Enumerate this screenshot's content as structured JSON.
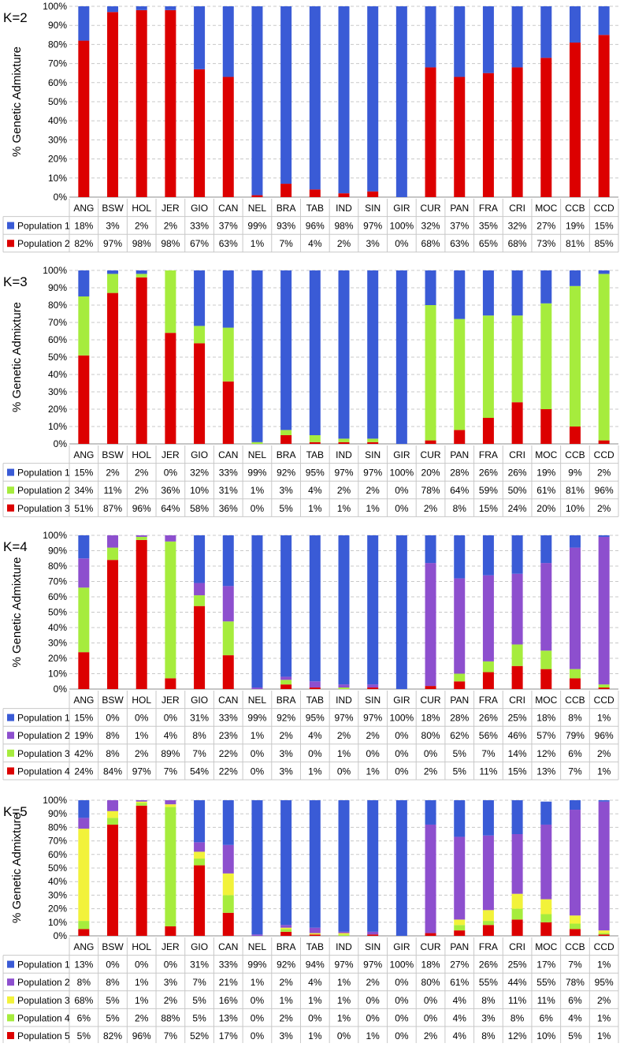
{
  "colors": {
    "Population 1": "#3a5bd6",
    "Population 2": "#8d4fce",
    "Population 3": "#f2f23a",
    "Population 4": "#a6ec3d",
    "Population 5": "#dc0000",
    "grid": "#c8c8c8",
    "axis": "#8c8c8c",
    "text": "#000000"
  },
  "chart_data": [
    {
      "type": "bar",
      "stacked": true,
      "title": "K=2",
      "ylabel": "% Genetic Admixture",
      "ylim": [
        0,
        100
      ],
      "yticks": [
        "0%",
        "10%",
        "20%",
        "30%",
        "40%",
        "50%",
        "60%",
        "70%",
        "80%",
        "90%",
        "100%"
      ],
      "categories": [
        "ANG",
        "BSW",
        "HOL",
        "JER",
        "GIO",
        "CAN",
        "NEL",
        "BRA",
        "TAB",
        "IND",
        "SIN",
        "GIR",
        "CUR",
        "PAN",
        "FRA",
        "CRI",
        "MOC",
        "CCB",
        "CCD"
      ],
      "series": [
        {
          "name": "Population 1",
          "color_key": "Population 1",
          "values": [
            18,
            3,
            2,
            2,
            33,
            37,
            99,
            93,
            96,
            98,
            97,
            100,
            32,
            37,
            35,
            32,
            27,
            19,
            15
          ],
          "labels": [
            "18%",
            "3%",
            "2%",
            "2%",
            "33%",
            "37%",
            "99%",
            "93%",
            "96%",
            "98%",
            "97%",
            "100%",
            "32%",
            "37%",
            "35%",
            "32%",
            "27%",
            "19%",
            "15%"
          ]
        },
        {
          "name": "Population 2",
          "color_key": "Population 5",
          "values": [
            82,
            97,
            98,
            98,
            67,
            63,
            1,
            7,
            4,
            2,
            3,
            0,
            68,
            63,
            65,
            68,
            73,
            81,
            85
          ],
          "labels": [
            "82%",
            "97%",
            "98%",
            "98%",
            "67%",
            "63%",
            "1%",
            "7%",
            "4%",
            "2%",
            "3%",
            "0%",
            "68%",
            "63%",
            "65%",
            "68%",
            "73%",
            "81%",
            "85%"
          ]
        }
      ]
    },
    {
      "type": "bar",
      "stacked": true,
      "title": "K=3",
      "ylabel": "% Genetic Admixture",
      "ylim": [
        0,
        100
      ],
      "yticks": [
        "0%",
        "10%",
        "20%",
        "30%",
        "40%",
        "50%",
        "60%",
        "70%",
        "80%",
        "90%",
        "100%"
      ],
      "categories": [
        "ANG",
        "BSW",
        "HOL",
        "JER",
        "GIO",
        "CAN",
        "NEL",
        "BRA",
        "TAB",
        "IND",
        "SIN",
        "GIR",
        "CUR",
        "PAN",
        "FRA",
        "CRI",
        "MOC",
        "CCB",
        "CCD"
      ],
      "series": [
        {
          "name": "Population 1",
          "color_key": "Population 1",
          "values": [
            15,
            2,
            2,
            0,
            32,
            33,
            99,
            92,
            95,
            97,
            97,
            100,
            20,
            28,
            26,
            26,
            19,
            9,
            2
          ],
          "labels": [
            "15%",
            "2%",
            "2%",
            "0%",
            "32%",
            "33%",
            "99%",
            "92%",
            "95%",
            "97%",
            "97%",
            "100%",
            "20%",
            "28%",
            "26%",
            "26%",
            "19%",
            "9%",
            "2%"
          ]
        },
        {
          "name": "Population 2",
          "color_key": "Population 4",
          "values": [
            34,
            11,
            2,
            36,
            10,
            31,
            1,
            3,
            4,
            2,
            2,
            0,
            78,
            64,
            59,
            50,
            61,
            81,
            96
          ],
          "labels": [
            "34%",
            "11%",
            "2%",
            "36%",
            "10%",
            "31%",
            "1%",
            "3%",
            "4%",
            "2%",
            "2%",
            "0%",
            "78%",
            "64%",
            "59%",
            "50%",
            "61%",
            "81%",
            "96%"
          ]
        },
        {
          "name": "Population 3",
          "color_key": "Population 5",
          "values": [
            51,
            87,
            96,
            64,
            58,
            36,
            0,
            5,
            1,
            1,
            1,
            0,
            2,
            8,
            15,
            24,
            20,
            10,
            2
          ],
          "labels": [
            "51%",
            "87%",
            "96%",
            "64%",
            "58%",
            "36%",
            "0%",
            "5%",
            "1%",
            "1%",
            "1%",
            "0%",
            "2%",
            "8%",
            "15%",
            "24%",
            "20%",
            "10%",
            "2%"
          ]
        }
      ]
    },
    {
      "type": "bar",
      "stacked": true,
      "title": "K=4",
      "ylabel": "% Genetic Admixture",
      "ylim": [
        0,
        100
      ],
      "yticks": [
        "0%",
        "10%",
        "20%",
        "30%",
        "40%",
        "50%",
        "60%",
        "70%",
        "80%",
        "90%",
        "100%"
      ],
      "categories": [
        "ANG",
        "BSW",
        "HOL",
        "JER",
        "GIO",
        "CAN",
        "NEL",
        "BRA",
        "TAB",
        "IND",
        "SIN",
        "GIR",
        "CUR",
        "PAN",
        "FRA",
        "CRI",
        "MOC",
        "CCB",
        "CCD"
      ],
      "series": [
        {
          "name": "Population 1",
          "color_key": "Population 1",
          "values": [
            15,
            0,
            0,
            0,
            31,
            33,
            99,
            92,
            95,
            97,
            97,
            100,
            18,
            28,
            26,
            25,
            18,
            8,
            1
          ],
          "labels": [
            "15%",
            "0%",
            "0%",
            "0%",
            "31%",
            "33%",
            "99%",
            "92%",
            "95%",
            "97%",
            "97%",
            "100%",
            "18%",
            "28%",
            "26%",
            "25%",
            "18%",
            "8%",
            "1%"
          ]
        },
        {
          "name": "Population 2",
          "color_key": "Population 2",
          "values": [
            19,
            8,
            1,
            4,
            8,
            23,
            1,
            2,
            4,
            2,
            2,
            0,
            80,
            62,
            56,
            46,
            57,
            79,
            96
          ],
          "labels": [
            "19%",
            "8%",
            "1%",
            "4%",
            "8%",
            "23%",
            "1%",
            "2%",
            "4%",
            "2%",
            "2%",
            "0%",
            "80%",
            "62%",
            "56%",
            "46%",
            "57%",
            "79%",
            "96%"
          ]
        },
        {
          "name": "Population 3",
          "color_key": "Population 4",
          "values": [
            42,
            8,
            2,
            89,
            7,
            22,
            0,
            3,
            0,
            1,
            0,
            0,
            0,
            5,
            7,
            14,
            12,
            6,
            2
          ],
          "labels": [
            "42%",
            "8%",
            "2%",
            "89%",
            "7%",
            "22%",
            "0%",
            "3%",
            "0%",
            "1%",
            "0%",
            "0%",
            "0%",
            "5%",
            "7%",
            "14%",
            "12%",
            "6%",
            "2%"
          ]
        },
        {
          "name": "Population 4",
          "color_key": "Population 5",
          "values": [
            24,
            84,
            97,
            7,
            54,
            22,
            0,
            3,
            1,
            0,
            1,
            0,
            2,
            5,
            11,
            15,
            13,
            7,
            1
          ],
          "labels": [
            "24%",
            "84%",
            "97%",
            "7%",
            "54%",
            "22%",
            "0%",
            "3%",
            "1%",
            "0%",
            "1%",
            "0%",
            "2%",
            "5%",
            "11%",
            "15%",
            "13%",
            "7%",
            "1%"
          ]
        }
      ]
    },
    {
      "type": "bar",
      "stacked": true,
      "title": "K=5",
      "ylabel": "% Genetic Admixture",
      "ylim": [
        0,
        100
      ],
      "yticks": [
        "0%",
        "10%",
        "20%",
        "30%",
        "40%",
        "50%",
        "60%",
        "70%",
        "80%",
        "90%",
        "100%"
      ],
      "categories": [
        "ANG",
        "BSW",
        "HOL",
        "JER",
        "GIO",
        "CAN",
        "NEL",
        "BRA",
        "TAB",
        "IND",
        "SIN",
        "GIR",
        "CUR",
        "PAN",
        "FRA",
        "CRI",
        "MOC",
        "CCB",
        "CCD"
      ],
      "series": [
        {
          "name": "Population 1",
          "color_key": "Population 1",
          "values": [
            13,
            0,
            0,
            0,
            31,
            33,
            99,
            92,
            94,
            97,
            97,
            100,
            18,
            27,
            26,
            25,
            17,
            7,
            1
          ],
          "labels": [
            "13%",
            "0%",
            "0%",
            "0%",
            "31%",
            "33%",
            "99%",
            "92%",
            "94%",
            "97%",
            "97%",
            "100%",
            "18%",
            "27%",
            "26%",
            "25%",
            "17%",
            "7%",
            "1%"
          ]
        },
        {
          "name": "Population 2",
          "color_key": "Population 2",
          "values": [
            8,
            8,
            1,
            3,
            7,
            21,
            1,
            2,
            4,
            1,
            2,
            0,
            80,
            61,
            55,
            44,
            55,
            78,
            95
          ],
          "labels": [
            "8%",
            "8%",
            "1%",
            "3%",
            "7%",
            "21%",
            "1%",
            "2%",
            "4%",
            "1%",
            "2%",
            "0%",
            "80%",
            "61%",
            "55%",
            "44%",
            "55%",
            "78%",
            "95%"
          ]
        },
        {
          "name": "Population 3",
          "color_key": "Population 3",
          "values": [
            68,
            5,
            1,
            2,
            5,
            16,
            0,
            1,
            1,
            1,
            0,
            0,
            0,
            4,
            8,
            11,
            11,
            6,
            2
          ],
          "labels": [
            "68%",
            "5%",
            "1%",
            "2%",
            "5%",
            "16%",
            "0%",
            "1%",
            "1%",
            "1%",
            "0%",
            "0%",
            "0%",
            "4%",
            "8%",
            "11%",
            "11%",
            "6%",
            "2%"
          ]
        },
        {
          "name": "Population 4",
          "color_key": "Population 4",
          "values": [
            6,
            5,
            2,
            88,
            5,
            13,
            0,
            2,
            0,
            1,
            0,
            0,
            0,
            4,
            3,
            8,
            6,
            4,
            1
          ],
          "labels": [
            "6%",
            "5%",
            "2%",
            "88%",
            "5%",
            "13%",
            "0%",
            "2%",
            "0%",
            "1%",
            "0%",
            "0%",
            "0%",
            "4%",
            "3%",
            "8%",
            "6%",
            "4%",
            "1%"
          ]
        },
        {
          "name": "Population 5",
          "color_key": "Population 5",
          "values": [
            5,
            82,
            96,
            7,
            52,
            17,
            0,
            3,
            1,
            0,
            1,
            0,
            2,
            4,
            8,
            12,
            10,
            5,
            1
          ],
          "labels": [
            "5%",
            "82%",
            "96%",
            "7%",
            "52%",
            "17%",
            "0%",
            "3%",
            "1%",
            "0%",
            "1%",
            "0%",
            "2%",
            "4%",
            "8%",
            "12%",
            "10%",
            "5%",
            "1%"
          ]
        }
      ]
    }
  ]
}
